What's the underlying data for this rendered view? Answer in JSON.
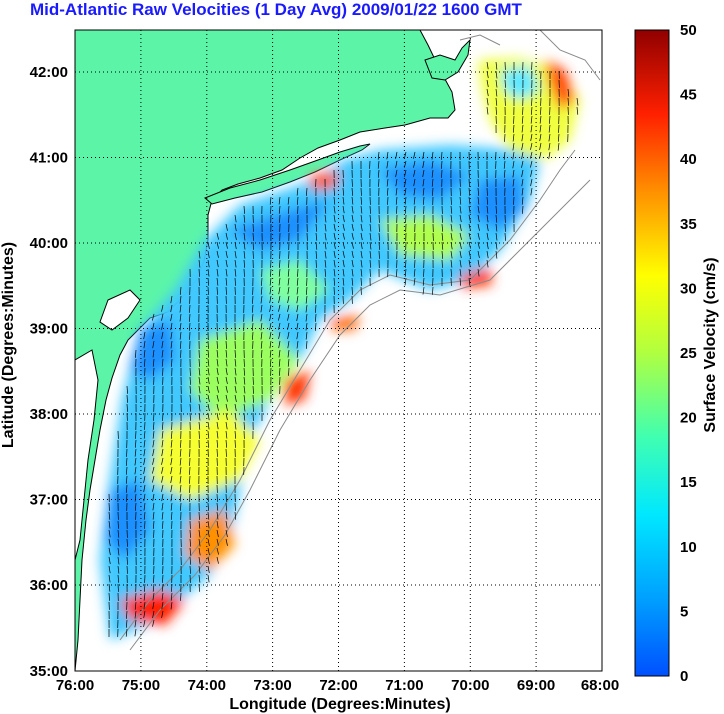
{
  "title": "Mid-Atlantic Raw Velocities (1 Day Avg) 2009/01/22 1600 GMT",
  "xlabel": "Longitude (Degrees:Minutes)",
  "ylabel": "Latitude (Degrees:Minutes)",
  "colorbar_label": "Surface Velocity (cm/s)",
  "x_ticks": [
    "76:00",
    "75:00",
    "74:00",
    "73:00",
    "72:00",
    "71:00",
    "70:00",
    "69:00",
    "68:00"
  ],
  "y_ticks": [
    "42:00",
    "41:00",
    "40:00",
    "39:00",
    "38:00",
    "37:00",
    "36:00",
    "35:00"
  ],
  "colorbar_ticks": [
    "50",
    "45",
    "40",
    "35",
    "30",
    "25",
    "20",
    "15",
    "10",
    "5",
    "0"
  ],
  "colors": {
    "title": "#1a1aff",
    "land": "#5cf5a8",
    "ocean": "#ffffff",
    "grid": "#000000",
    "coast": "#000000",
    "bathymetry": "#8a8a8a"
  },
  "colormap": "jet",
  "colorbar_range": [
    0,
    50
  ]
}
